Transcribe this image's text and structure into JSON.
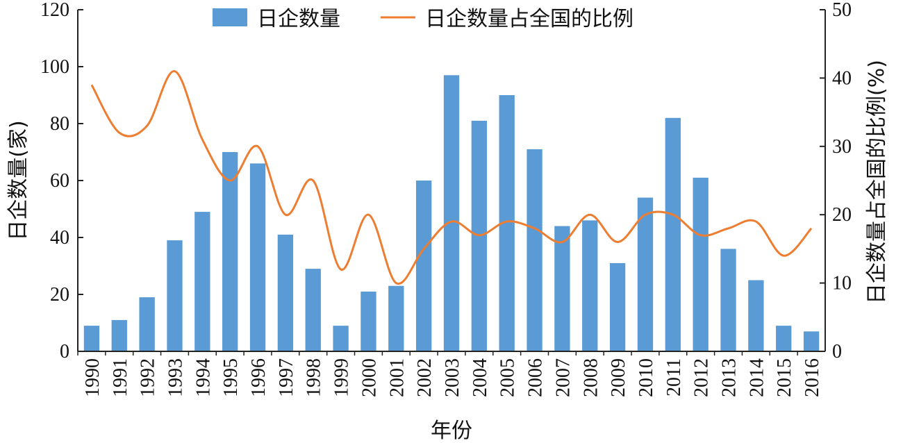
{
  "chart_data": {
    "type": "bar",
    "categories": [
      "1990",
      "1991",
      "1992",
      "1993",
      "1994",
      "1995",
      "1996",
      "1997",
      "1998",
      "1999",
      "2000",
      "2001",
      "2002",
      "2003",
      "2004",
      "2005",
      "2006",
      "2007",
      "2008",
      "2009",
      "2010",
      "2011",
      "2012",
      "2013",
      "2014",
      "2015",
      "2016"
    ],
    "series": [
      {
        "name": "日企数量",
        "type": "bar",
        "axis": "left",
        "color": "#5b9bd5",
        "values": [
          9,
          11,
          19,
          39,
          49,
          70,
          66,
          41,
          29,
          9,
          21,
          23,
          60,
          97,
          81,
          90,
          71,
          44,
          46,
          31,
          54,
          82,
          61,
          36,
          25,
          9,
          7
        ]
      },
      {
        "name": "日企数量占全国的比例",
        "type": "line",
        "axis": "right",
        "color": "#ed7d31",
        "values": [
          39,
          32,
          33,
          41,
          31,
          25,
          30,
          20,
          25,
          12,
          20,
          10,
          15,
          19,
          17,
          19,
          18,
          16,
          20,
          16,
          20,
          20,
          17,
          18,
          19,
          14,
          18
        ]
      }
    ],
    "title": "",
    "xlabel": "年份",
    "ylabel": "日企数量(家)",
    "y2label": "日企数量占全国的比例(%)",
    "ylim": [
      0,
      120
    ],
    "y2lim": [
      0,
      50
    ],
    "yticks": [
      0,
      20,
      40,
      60,
      80,
      100,
      120
    ],
    "y2ticks": [
      0,
      10,
      20,
      30,
      40,
      50
    ],
    "grid": false,
    "legend_position": "top-center"
  }
}
